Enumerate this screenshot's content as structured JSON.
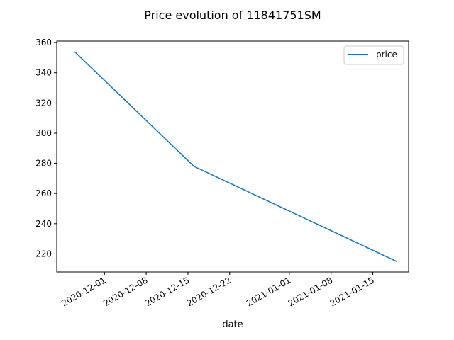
{
  "chart_data": {
    "type": "line",
    "title": "Price evolution of 11841751SM",
    "xlabel": "date",
    "ylabel": "",
    "x": [
      "2020-11-26",
      "2020-12-16",
      "2021-01-19"
    ],
    "series": [
      {
        "name": "price",
        "color": "#1f77b4",
        "values": [
          354,
          278,
          215
        ]
      }
    ],
    "xlim": [
      "2020-11-23",
      "2021-01-21"
    ],
    "ylim": [
      208,
      361
    ],
    "x_ticks": [
      "2020-12-01",
      "2020-12-08",
      "2020-12-15",
      "2020-12-22",
      "2021-01-01",
      "2021-01-08",
      "2021-01-15"
    ],
    "y_ticks": [
      220,
      240,
      260,
      280,
      300,
      320,
      340,
      360
    ],
    "grid": false,
    "legend_position": "top-right"
  }
}
